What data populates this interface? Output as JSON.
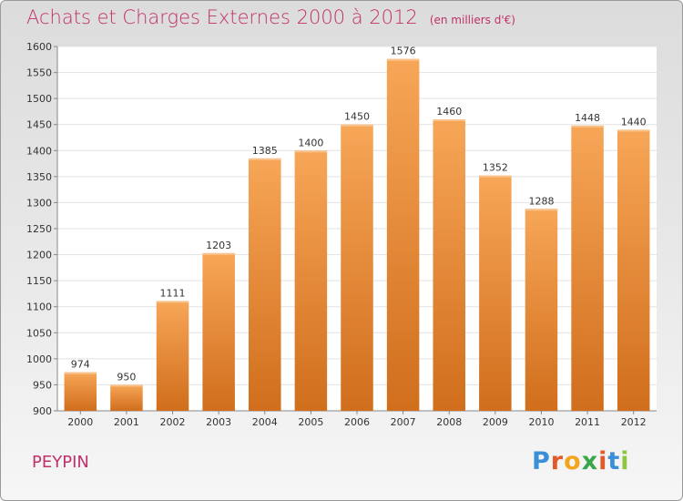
{
  "title": "Achats et Charges Externes 2000 à 2012",
  "unit": "(en milliers d'€)",
  "city": "PEYPIN",
  "logo": {
    "letters": [
      "P",
      "r",
      "o",
      "x",
      "i",
      "t",
      "i"
    ],
    "colors": [
      "#3a8fd6",
      "#e25a2a",
      "#f2a51e",
      "#3aa64a",
      "#e25a2a",
      "#3a8fd6",
      "#8dc63f"
    ]
  },
  "colors": {
    "bar_top": "#f7a657",
    "bar_bottom": "#d06e1c",
    "title": "#c0306a"
  },
  "chart_data": {
    "type": "bar",
    "categories": [
      "2000",
      "2001",
      "2002",
      "2003",
      "2004",
      "2005",
      "2006",
      "2007",
      "2008",
      "2009",
      "2010",
      "2011",
      "2012"
    ],
    "values": [
      974,
      950,
      1111,
      1203,
      1385,
      1400,
      1450,
      1576,
      1460,
      1352,
      1288,
      1448,
      1440
    ],
    "ylim": [
      900,
      1600
    ],
    "yticks": [
      900,
      950,
      1000,
      1050,
      1100,
      1150,
      1200,
      1250,
      1300,
      1350,
      1400,
      1450,
      1500,
      1550,
      1600
    ],
    "grid": true,
    "title": "Achats et Charges Externes 2000 à 2012",
    "xlabel": "",
    "ylabel": ""
  }
}
